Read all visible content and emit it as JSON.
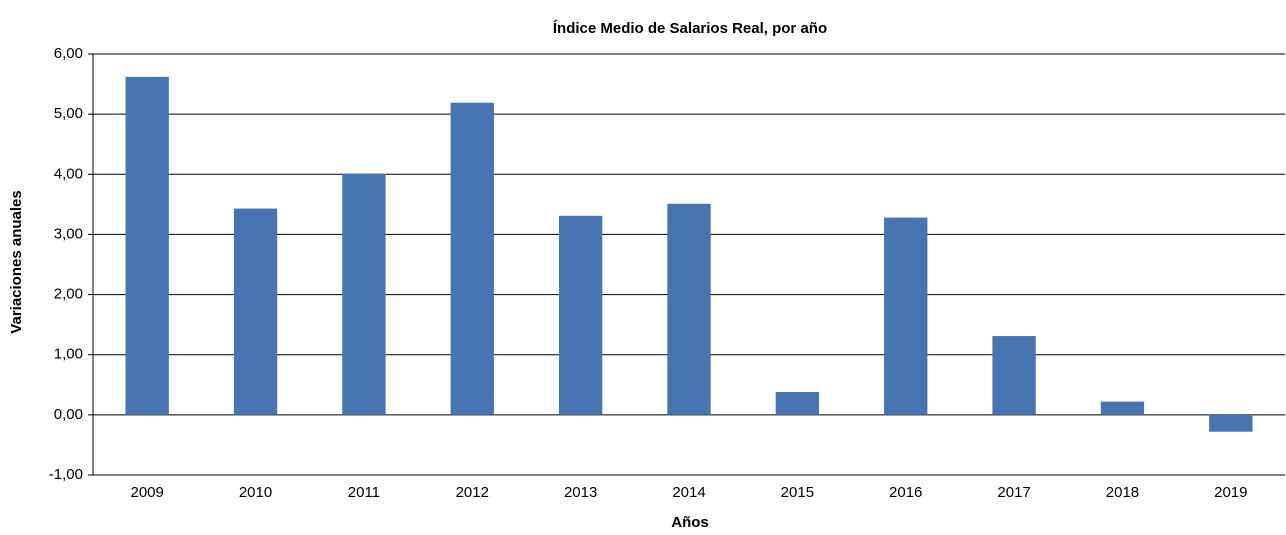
{
  "chart_data": {
    "type": "bar",
    "title": "Índice Medio de Salarios Real, por año",
    "x_label": "Años",
    "y_label": "Variaciones anuales",
    "categories": [
      "2009",
      "2010",
      "2011",
      "2012",
      "2013",
      "2014",
      "2015",
      "2016",
      "2017",
      "2018",
      "2019"
    ],
    "values": [
      5.62,
      3.43,
      4.01,
      5.19,
      3.31,
      3.51,
      0.38,
      3.28,
      1.31,
      0.22,
      -0.28
    ],
    "color": "#4775b2",
    "ylim": [
      -1,
      6
    ],
    "yticks": [
      {
        "value": -1,
        "label": "-1,00"
      },
      {
        "value": 0,
        "label": "0,00"
      },
      {
        "value": 1,
        "label": "1,00"
      },
      {
        "value": 2,
        "label": "2,00"
      },
      {
        "value": 3,
        "label": "3,00"
      },
      {
        "value": 4,
        "label": "4,00"
      },
      {
        "value": 5,
        "label": "5,00"
      },
      {
        "value": 6,
        "label": "6,00"
      }
    ],
    "grid": true
  }
}
